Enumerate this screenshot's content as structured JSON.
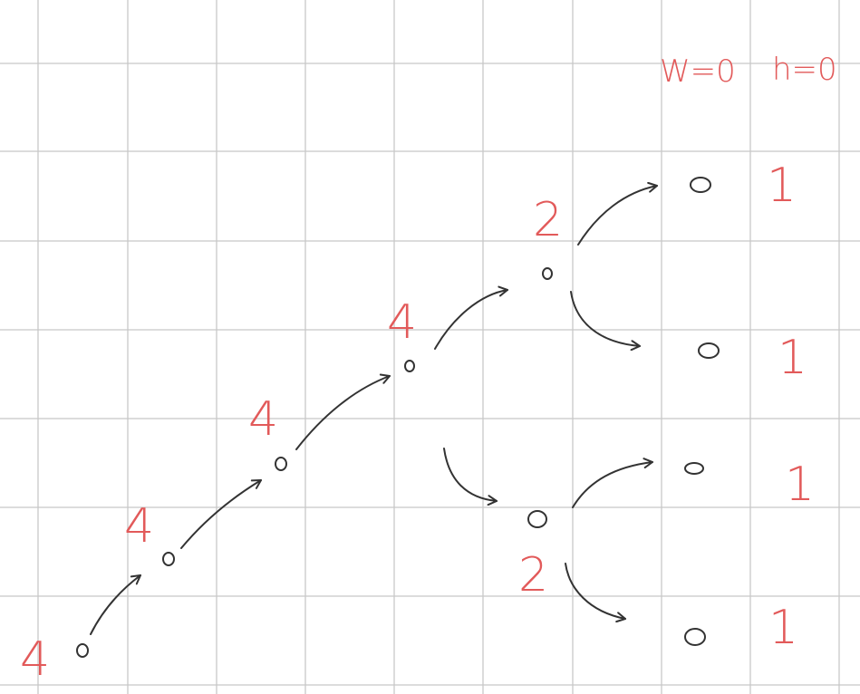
{
  "header": {
    "w_label": "W=0",
    "h_label": "h=0"
  },
  "tree": {
    "nodes": [
      {
        "id": "n1",
        "label": "4"
      },
      {
        "id": "n2",
        "label": "4"
      },
      {
        "id": "n3",
        "label": "4"
      },
      {
        "id": "n4",
        "label": "4"
      },
      {
        "id": "n5",
        "label": "2"
      },
      {
        "id": "n6",
        "label": "2"
      }
    ],
    "leaves": [
      {
        "id": "l1",
        "h": "1"
      },
      {
        "id": "l2",
        "h": "1"
      },
      {
        "id": "l3",
        "h": "1"
      },
      {
        "id": "l4",
        "h": "1"
      }
    ]
  },
  "colors": {
    "red": "#e25a5a",
    "ink": "#333333",
    "grid": "#c8c8c8"
  }
}
